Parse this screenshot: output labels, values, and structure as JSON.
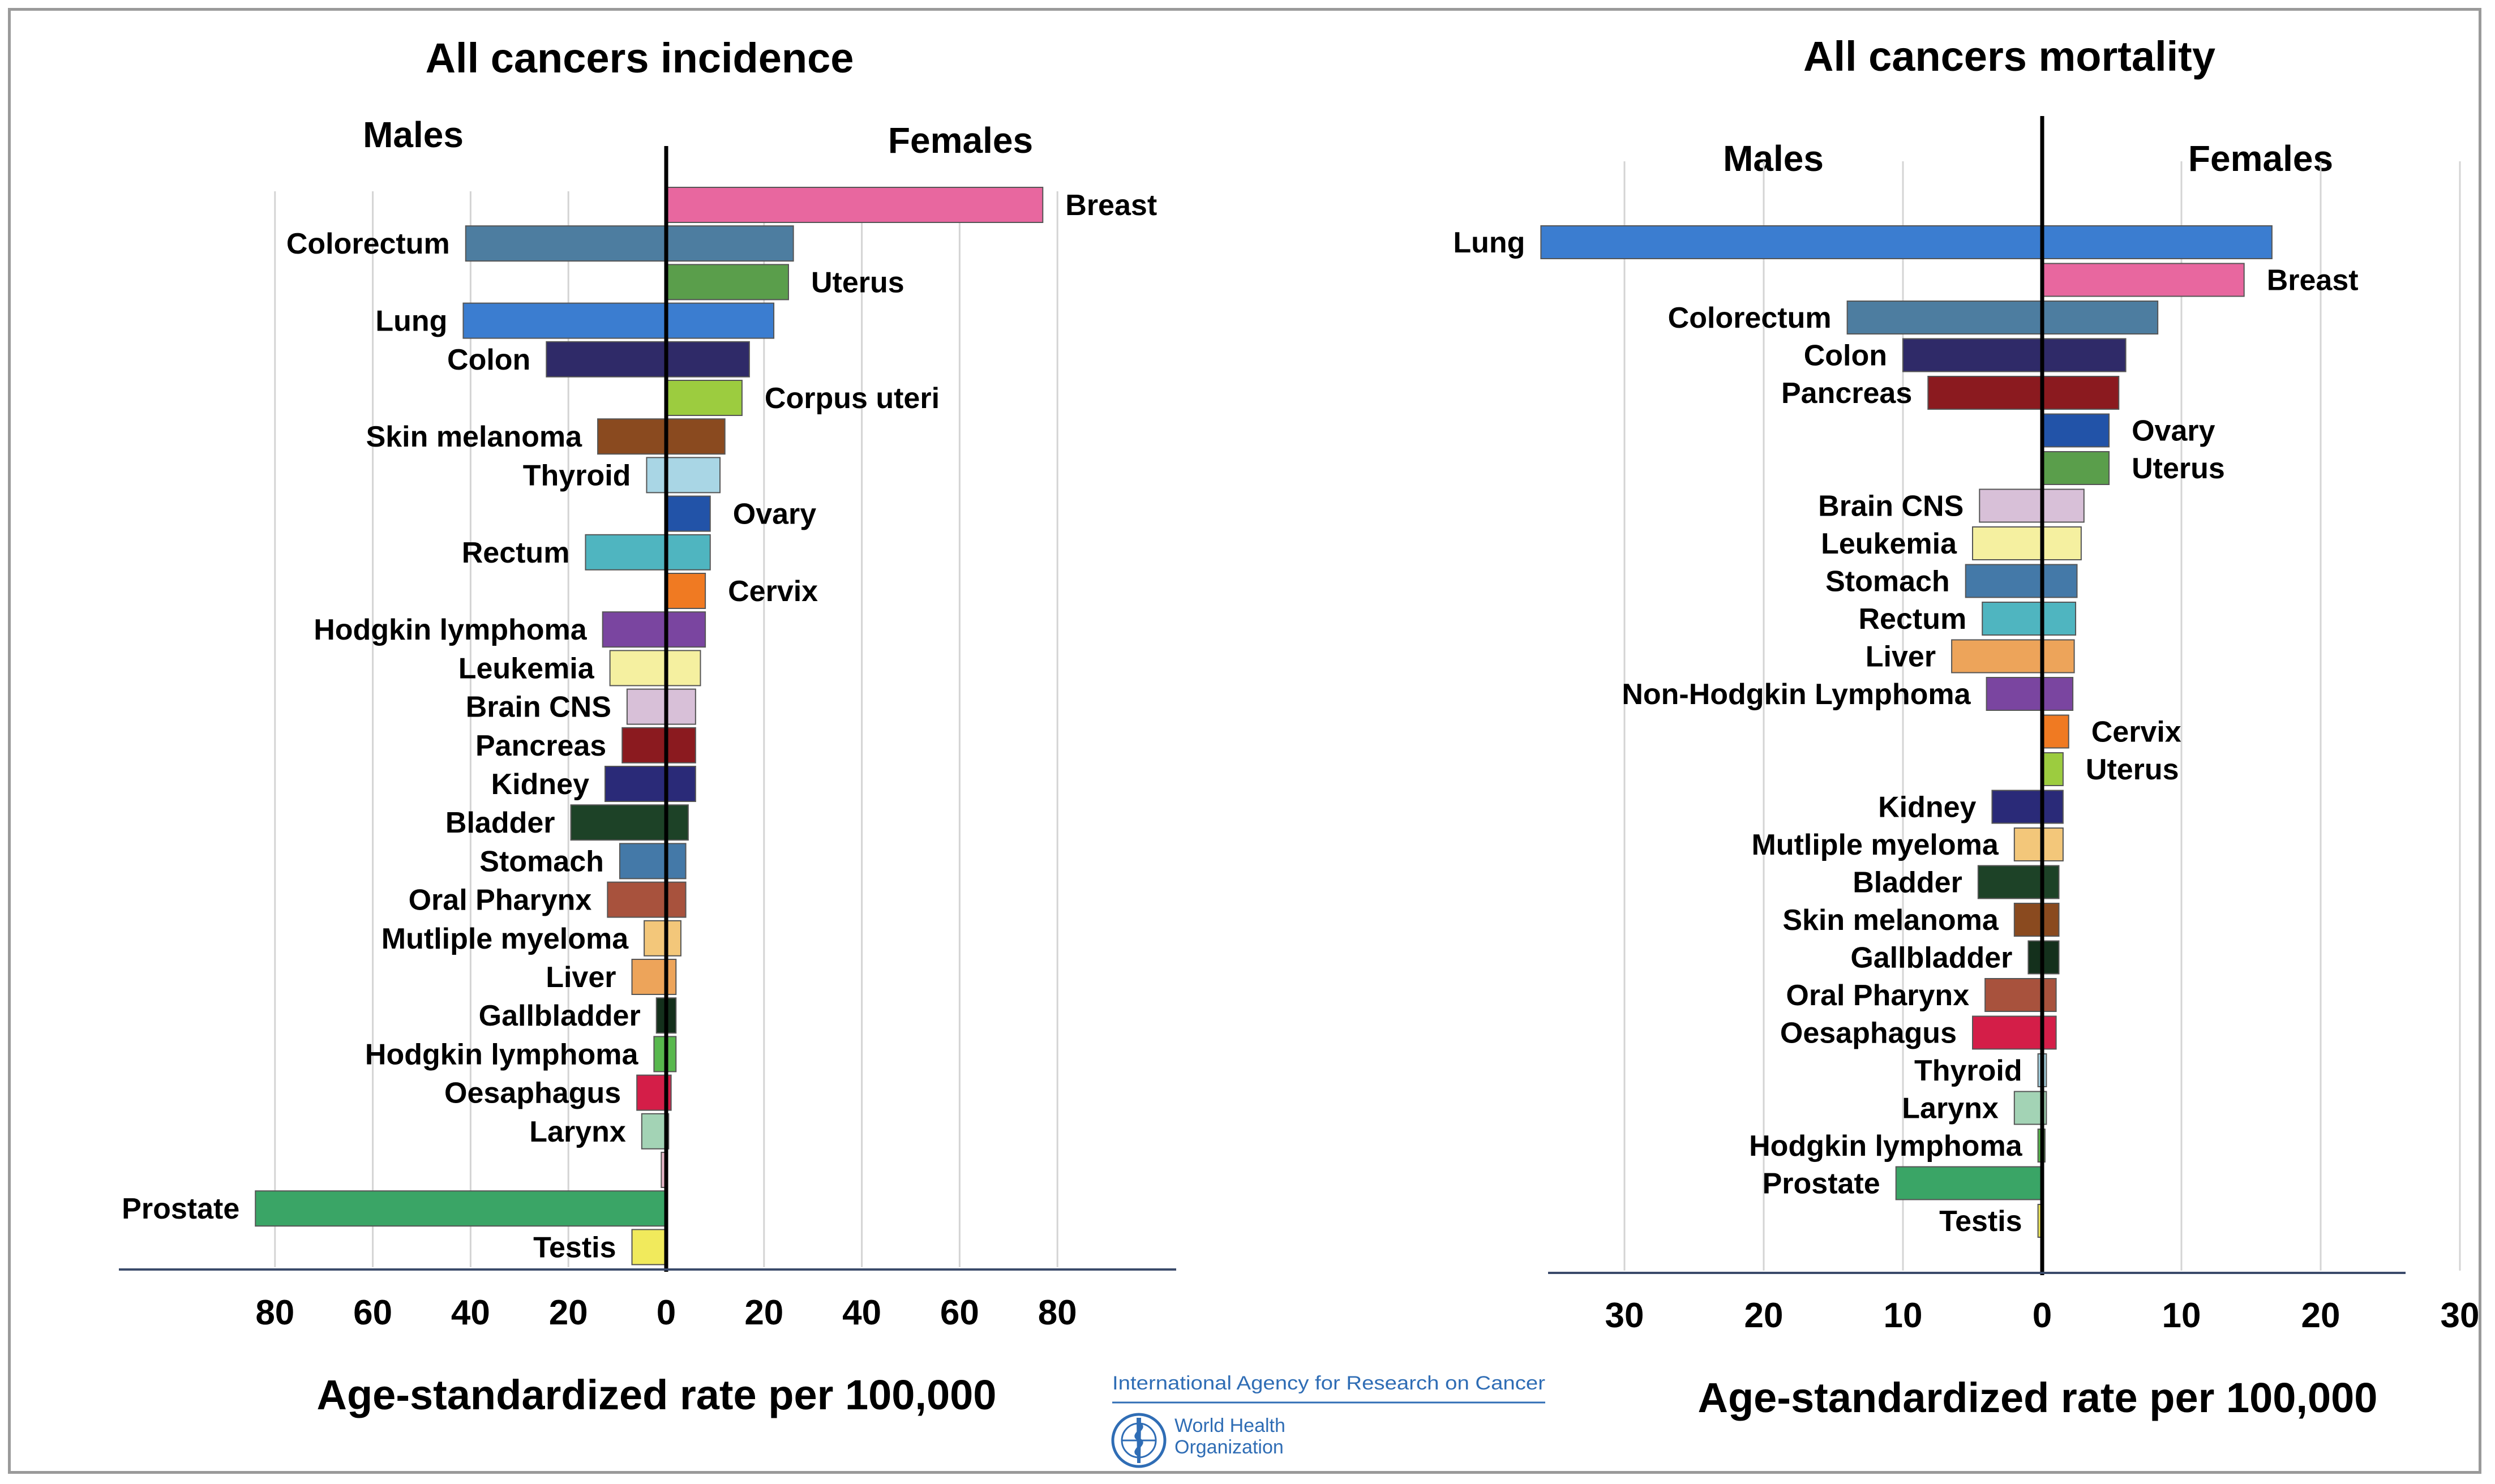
{
  "chart_data": [
    {
      "type": "bar",
      "orientation": "horizontal-butterfly",
      "title": "All cancers incidence",
      "left_group": "Males",
      "right_group": "Females",
      "xlabel": "Age-standardized rate per 100,000",
      "xticks_left": [
        "80",
        "60",
        "40",
        "20",
        "0"
      ],
      "xticks_right": [
        "20",
        "40",
        "60",
        "80"
      ],
      "xlim": [
        -85,
        85
      ],
      "grid": true,
      "bars": [
        {
          "label": "Breast",
          "side": "right",
          "male": 0,
          "female": 77,
          "color": "#e8679f"
        },
        {
          "label": "Colorectum",
          "side": "left",
          "male": 41,
          "female": 26,
          "color": "#4d7da0"
        },
        {
          "label": "Uterus",
          "side": "right",
          "male": 0,
          "female": 25,
          "color": "#5a9e4b"
        },
        {
          "label": "Lung",
          "side": "left",
          "male": 41.5,
          "female": 22,
          "color": "#3b7dd0"
        },
        {
          "label": "Colon",
          "side": "left",
          "male": 24.5,
          "female": 17,
          "color": "#2f2a68"
        },
        {
          "label": "Corpus uteri",
          "side": "right",
          "male": 0,
          "female": 15.5,
          "color": "#9ccc3f"
        },
        {
          "label": "Skin melanoma",
          "side": "left",
          "male": 14,
          "female": 12,
          "color": "#8a4a1f"
        },
        {
          "label": "Thyroid",
          "side": "left",
          "male": 4,
          "female": 11,
          "color": "#a9d6e5"
        },
        {
          "label": "Ovary",
          "side": "right",
          "male": 0,
          "female": 9,
          "color": "#2253a8"
        },
        {
          "label": "Rectum",
          "side": "left",
          "male": 16.5,
          "female": 9,
          "color": "#4fb5c0"
        },
        {
          "label": "Cervix",
          "side": "right",
          "male": 0,
          "female": 8,
          "color": "#f07a22"
        },
        {
          "label": "Hodgkin lymphoma",
          "side": "left",
          "male": 13,
          "female": 8,
          "color": "#7a45a0"
        },
        {
          "label": "Leukemia",
          "side": "left",
          "male": 11.5,
          "female": 7,
          "color": "#f5f0a0"
        },
        {
          "label": "Brain CNS",
          "side": "left",
          "male": 8,
          "female": 6,
          "color": "#d8c0d8"
        },
        {
          "label": "Pancreas",
          "side": "left",
          "male": 9,
          "female": 6,
          "color": "#8b1a1f"
        },
        {
          "label": "Kidney",
          "side": "left",
          "male": 12.5,
          "female": 6,
          "color": "#2a2a78"
        },
        {
          "label": "Bladder",
          "side": "left",
          "male": 19.5,
          "female": 4.5,
          "color": "#1d4227"
        },
        {
          "label": "Stomach",
          "side": "left",
          "male": 9.5,
          "female": 4,
          "color": "#4479a8"
        },
        {
          "label": "Oral Pharynx",
          "side": "left",
          "male": 12,
          "female": 4,
          "color": "#a8523d"
        },
        {
          "label": "Mutliple myeloma",
          "side": "left",
          "male": 4.5,
          "female": 3,
          "color": "#f3c77a"
        },
        {
          "label": "Liver",
          "side": "left",
          "male": 7,
          "female": 2,
          "color": "#eda45a"
        },
        {
          "label": "Gallbladder",
          "side": "left",
          "male": 2,
          "female": 2,
          "color": "#14301c"
        },
        {
          "label": "Hodgkin lymphoma",
          "side": "left",
          "male": 2.5,
          "female": 2,
          "color": "#58b84d"
        },
        {
          "label": "Oesaphagus",
          "side": "left",
          "male": 6,
          "female": 1,
          "color": "#d41e48"
        },
        {
          "label": "Larynx",
          "side": "left",
          "male": 5,
          "female": 0.5,
          "color": "#a3d3b5"
        },
        {
          "label": "",
          "side": "left",
          "male": 1,
          "female": 0,
          "color": "#e8b8c8"
        },
        {
          "label": "Prostate",
          "side": "left",
          "male": 84,
          "female": 0,
          "color": "#3aa566"
        },
        {
          "label": "Testis",
          "side": "left",
          "male": 7,
          "female": 0,
          "color": "#f1ea5c"
        }
      ]
    },
    {
      "type": "bar",
      "orientation": "horizontal-butterfly",
      "title": "All cancers mortality",
      "left_group": "Males",
      "right_group": "Females",
      "xlabel": "Age-standardized rate per 100,000",
      "xticks_left": [
        "30",
        "20",
        "10",
        "0"
      ],
      "xticks_right": [
        "10",
        "20",
        "30"
      ],
      "xlim": [
        -36,
        36
      ],
      "grid": true,
      "bars": [
        {
          "label": "Lung",
          "side": "left",
          "male": 36,
          "female": 16.5,
          "color": "#3b7dd0"
        },
        {
          "label": "Breast",
          "side": "right",
          "male": 0,
          "female": 14.5,
          "color": "#e8679f"
        },
        {
          "label": "Colorectum",
          "side": "left",
          "male": 14,
          "female": 8.3,
          "color": "#4d7da0"
        },
        {
          "label": "Colon",
          "side": "left",
          "male": 10,
          "female": 6,
          "color": "#2f2a68"
        },
        {
          "label": "Pancreas",
          "side": "left",
          "male": 8.2,
          "female": 5.5,
          "color": "#8b1a1f"
        },
        {
          "label": "Ovary",
          "side": "right",
          "male": 0,
          "female": 4.8,
          "color": "#2253a8"
        },
        {
          "label": "Uterus",
          "side": "right",
          "male": 0,
          "female": 4.8,
          "color": "#5a9e4b"
        },
        {
          "label": "Brain CNS",
          "side": "left",
          "male": 4.5,
          "female": 3,
          "color": "#d8c0d8"
        },
        {
          "label": "Leukemia",
          "side": "left",
          "male": 5,
          "female": 2.8,
          "color": "#f5f0a0"
        },
        {
          "label": "Stomach",
          "side": "left",
          "male": 5.5,
          "female": 2.5,
          "color": "#4479a8"
        },
        {
          "label": "Rectum",
          "side": "left",
          "male": 4.3,
          "female": 2.4,
          "color": "#4fb5c0"
        },
        {
          "label": "Liver",
          "side": "left",
          "male": 6.5,
          "female": 2.3,
          "color": "#eda45a"
        },
        {
          "label": "Non-Hodgkin Lymphoma",
          "side": "left",
          "male": 4,
          "female": 2.2,
          "color": "#7a45a0"
        },
        {
          "label": "Cervix",
          "side": "right",
          "male": 0,
          "female": 1.9,
          "color": "#f07a22"
        },
        {
          "label": "Uterus",
          "side": "right",
          "male": 0,
          "female": 1.5,
          "color": "#9ccc3f"
        },
        {
          "label": "Kidney",
          "side": "left",
          "male": 3.6,
          "female": 1.5,
          "color": "#2a2a78"
        },
        {
          "label": "Mutliple myeloma",
          "side": "left",
          "male": 2,
          "female": 1.5,
          "color": "#f3c77a"
        },
        {
          "label": "Bladder",
          "side": "left",
          "male": 4.6,
          "female": 1.2,
          "color": "#1d4227"
        },
        {
          "label": "Skin melanoma",
          "side": "left",
          "male": 2,
          "female": 1.2,
          "color": "#8a4a1f"
        },
        {
          "label": "Gallbladder",
          "side": "left",
          "male": 1,
          "female": 1.2,
          "color": "#14301c"
        },
        {
          "label": "Oral Pharynx",
          "side": "left",
          "male": 4.1,
          "female": 1,
          "color": "#a8523d"
        },
        {
          "label": "Oesaphagus",
          "side": "left",
          "male": 5,
          "female": 1,
          "color": "#d41e48"
        },
        {
          "label": "Thyroid",
          "side": "left",
          "male": 0.3,
          "female": 0.3,
          "color": "#a9d6e5"
        },
        {
          "label": "Larynx",
          "side": "left",
          "male": 2,
          "female": 0.3,
          "color": "#a3d3b5"
        },
        {
          "label": "Hodgkin lymphoma",
          "side": "left",
          "male": 0.3,
          "female": 0.2,
          "color": "#58b84d"
        },
        {
          "label": "Prostate",
          "side": "left",
          "male": 10.5,
          "female": 0,
          "color": "#3aa566"
        },
        {
          "label": "Testis",
          "side": "left",
          "male": 0.3,
          "female": 0,
          "color": "#f1ea5c"
        }
      ]
    }
  ],
  "logos": {
    "iarc": "International Agency for Research on Cancer",
    "who_line1": "World Health",
    "who_line2": "Organization",
    "who_icon": "who-emblem-icon"
  }
}
